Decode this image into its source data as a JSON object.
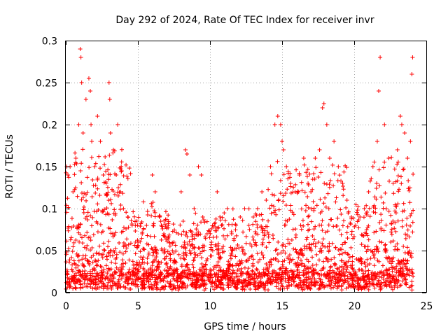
{
  "chart_data": {
    "type": "scatter",
    "title": "Day 292 of 2024, Rate Of TEC Index for receiver invr",
    "xlabel": "GPS time / hours",
    "ylabel": "ROTI / TECUs",
    "xlim": [
      0,
      25
    ],
    "ylim": [
      0,
      0.3
    ],
    "xticks": [
      0,
      5,
      10,
      15,
      20,
      25
    ],
    "yticks": [
      0,
      0.05,
      0.1,
      0.15,
      0.2,
      0.25,
      0.3
    ],
    "xtick_labels": [
      "0",
      "5",
      "10",
      "15",
      "20",
      "25"
    ],
    "ytick_labels": [
      "0",
      "0.05",
      "0.1",
      "0.15",
      "0.2",
      "0.25",
      "0.3"
    ],
    "grid": true,
    "marker": "plus",
    "color": "#ff0000",
    "x": [
      0.15,
      0.3,
      0.5,
      0.7,
      0.9,
      1.0,
      1.05,
      1.1,
      1.2,
      1.4,
      1.6,
      1.7,
      1.75,
      1.8,
      2.0,
      2.2,
      2.4,
      2.6,
      2.8,
      3.0,
      3.05,
      3.1,
      3.3,
      3.5,
      3.6,
      3.8,
      4.0,
      4.3,
      4.6,
      5.0,
      5.3,
      5.6,
      6.0,
      6.2,
      6.5,
      6.8,
      7.1,
      7.5,
      7.8,
      8.0,
      8.3,
      8.4,
      8.6,
      8.9,
      9.2,
      9.4,
      9.5,
      9.8,
      10.1,
      10.5,
      10.8,
      11.2,
      11.5,
      11.8,
      12.1,
      12.4,
      12.7,
      13.0,
      13.3,
      13.6,
      13.9,
      14.2,
      14.5,
      14.7,
      14.9,
      15.0,
      15.1,
      15.3,
      15.6,
      15.9,
      16.2,
      16.5,
      16.8,
      17.0,
      17.3,
      17.6,
      17.8,
      17.9,
      18.1,
      18.3,
      18.6,
      18.9,
      19.2,
      19.5,
      19.8,
      20.1,
      20.4,
      20.7,
      21.0,
      21.3,
      21.6,
      21.7,
      21.8,
      22.1,
      22.4,
      22.7,
      23.0,
      23.2,
      23.3,
      23.5,
      23.7,
      23.9,
      24.0,
      24.05
    ],
    "y": [
      0.14,
      0.15,
      0.12,
      0.16,
      0.2,
      0.29,
      0.28,
      0.25,
      0.19,
      0.23,
      0.255,
      0.24,
      0.2,
      0.18,
      0.15,
      0.21,
      0.18,
      0.14,
      0.13,
      0.25,
      0.23,
      0.19,
      0.17,
      0.14,
      0.2,
      0.12,
      0.1,
      0.09,
      0.08,
      0.06,
      0.07,
      0.08,
      0.14,
      0.12,
      0.09,
      0.07,
      0.08,
      0.06,
      0.07,
      0.12,
      0.17,
      0.165,
      0.14,
      0.1,
      0.15,
      0.14,
      0.09,
      0.07,
      0.06,
      0.12,
      0.08,
      0.1,
      0.07,
      0.08,
      0.09,
      0.1,
      0.08,
      0.09,
      0.1,
      0.12,
      0.11,
      0.15,
      0.2,
      0.21,
      0.2,
      0.18,
      0.17,
      0.15,
      0.13,
      0.12,
      0.14,
      0.16,
      0.13,
      0.12,
      0.16,
      0.17,
      0.22,
      0.225,
      0.2,
      0.16,
      0.18,
      0.15,
      0.13,
      0.11,
      0.09,
      0.08,
      0.09,
      0.1,
      0.12,
      0.15,
      0.18,
      0.24,
      0.28,
      0.2,
      0.16,
      0.13,
      0.17,
      0.21,
      0.2,
      0.19,
      0.16,
      0.18,
      0.26,
      0.28
    ]
  }
}
